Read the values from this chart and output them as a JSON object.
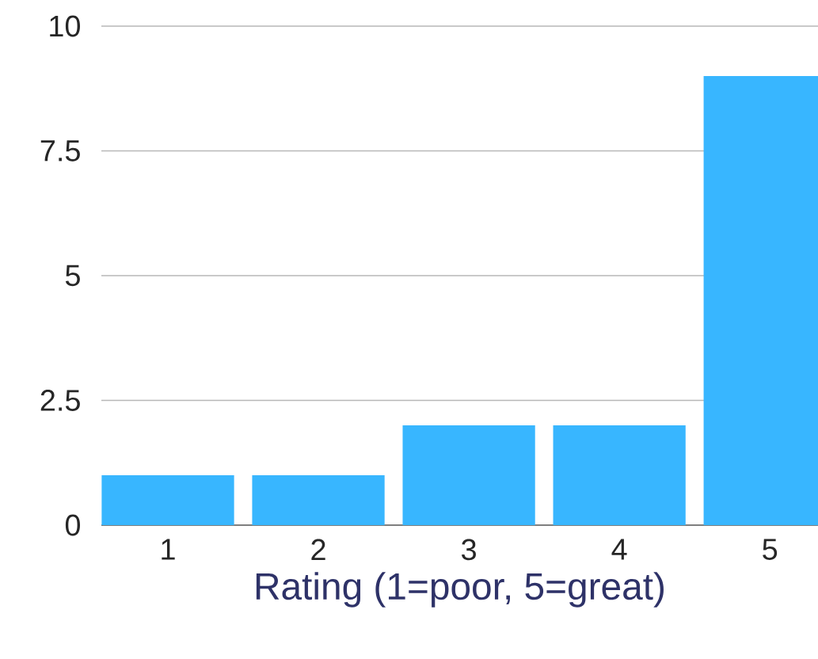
{
  "chart_data": {
    "type": "bar",
    "xlabel": "Rating (1=poor, 5=great)",
    "categories": [
      "1",
      "2",
      "3",
      "4",
      "5"
    ],
    "values": [
      1,
      1,
      2,
      2,
      9
    ],
    "color": "#38b6ff",
    "ylim": [
      0,
      10
    ],
    "yticks": [
      0,
      2.5,
      5,
      7.5,
      10
    ],
    "grid": "y"
  }
}
